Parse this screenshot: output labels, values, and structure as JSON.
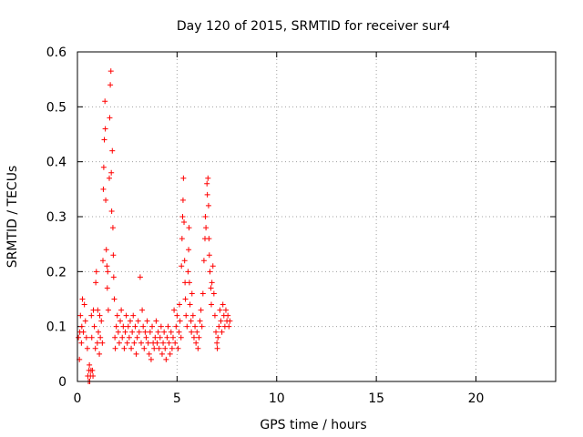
{
  "chart_data": {
    "type": "scatter",
    "title": "Day 120 of 2015, SRMTID for receiver sur4",
    "xlabel": "GPS time / hours",
    "ylabel": "SRMTID / TECUs",
    "xlim": [
      0,
      24
    ],
    "ylim": [
      0,
      0.6
    ],
    "xticks": [
      0,
      5,
      10,
      15,
      20
    ],
    "yticks": [
      0,
      0.1,
      0.2,
      0.3,
      0.4,
      0.5,
      0.6
    ],
    "grid": true,
    "marker": "+",
    "color": "#ff0000",
    "series": [
      {
        "name": "SRMTID",
        "points": [
          [
            0.05,
            0.08
          ],
          [
            0.1,
            0.04
          ],
          [
            0.12,
            0.09
          ],
          [
            0.15,
            0.12
          ],
          [
            0.2,
            0.07
          ],
          [
            0.22,
            0.1
          ],
          [
            0.25,
            0.15
          ],
          [
            0.3,
            0.09
          ],
          [
            0.35,
            0.14
          ],
          [
            0.4,
            0.11
          ],
          [
            0.45,
            0.08
          ],
          [
            0.5,
            0.06
          ],
          [
            0.52,
            0.01
          ],
          [
            0.55,
            0.0
          ],
          [
            0.58,
            0.02
          ],
          [
            0.6,
            0.03
          ],
          [
            0.62,
            0.0
          ],
          [
            0.65,
            0.01
          ],
          [
            0.68,
            0.02
          ],
          [
            0.7,
            0.12
          ],
          [
            0.72,
            0.08
          ],
          [
            0.75,
            0.02
          ],
          [
            0.78,
            0.01
          ],
          [
            0.8,
            0.13
          ],
          [
            0.85,
            0.1
          ],
          [
            0.9,
            0.06
          ],
          [
            0.92,
            0.18
          ],
          [
            0.95,
            0.2
          ],
          [
            1.0,
            0.07
          ],
          [
            1.02,
            0.13
          ],
          [
            1.05,
            0.09
          ],
          [
            1.1,
            0.05
          ],
          [
            1.12,
            0.12
          ],
          [
            1.15,
            0.08
          ],
          [
            1.2,
            0.11
          ],
          [
            1.25,
            0.07
          ],
          [
            1.28,
            0.22
          ],
          [
            1.3,
            0.35
          ],
          [
            1.32,
            0.39
          ],
          [
            1.35,
            0.44
          ],
          [
            1.38,
            0.51
          ],
          [
            1.4,
            0.46
          ],
          [
            1.42,
            0.33
          ],
          [
            1.45,
            0.24
          ],
          [
            1.48,
            0.21
          ],
          [
            1.5,
            0.17
          ],
          [
            1.52,
            0.2
          ],
          [
            1.55,
            0.13
          ],
          [
            1.6,
            0.37
          ],
          [
            1.62,
            0.48
          ],
          [
            1.65,
            0.54
          ],
          [
            1.68,
            0.565
          ],
          [
            1.7,
            0.38
          ],
          [
            1.72,
            0.31
          ],
          [
            1.75,
            0.42
          ],
          [
            1.78,
            0.28
          ],
          [
            1.8,
            0.23
          ],
          [
            1.82,
            0.19
          ],
          [
            1.85,
            0.15
          ],
          [
            1.88,
            0.08
          ],
          [
            1.9,
            0.06
          ],
          [
            1.95,
            0.1
          ],
          [
            2.0,
            0.12
          ],
          [
            2.05,
            0.09
          ],
          [
            2.1,
            0.07
          ],
          [
            2.15,
            0.11
          ],
          [
            2.2,
            0.13
          ],
          [
            2.25,
            0.08
          ],
          [
            2.3,
            0.1
          ],
          [
            2.35,
            0.06
          ],
          [
            2.4,
            0.09
          ],
          [
            2.45,
            0.12
          ],
          [
            2.5,
            0.07
          ],
          [
            2.55,
            0.1
          ],
          [
            2.6,
            0.08
          ],
          [
            2.65,
            0.11
          ],
          [
            2.7,
            0.06
          ],
          [
            2.75,
            0.09
          ],
          [
            2.8,
            0.12
          ],
          [
            2.85,
            0.07
          ],
          [
            2.9,
            0.1
          ],
          [
            2.95,
            0.05
          ],
          [
            3.0,
            0.08
          ],
          [
            3.05,
            0.11
          ],
          [
            3.1,
            0.09
          ],
          [
            3.15,
            0.19
          ],
          [
            3.2,
            0.07
          ],
          [
            3.25,
            0.13
          ],
          [
            3.3,
            0.1
          ],
          [
            3.35,
            0.06
          ],
          [
            3.4,
            0.09
          ],
          [
            3.45,
            0.08
          ],
          [
            3.5,
            0.11
          ],
          [
            3.55,
            0.07
          ],
          [
            3.6,
            0.05
          ],
          [
            3.65,
            0.09
          ],
          [
            3.7,
            0.04
          ],
          [
            3.75,
            0.1
          ],
          [
            3.8,
            0.07
          ],
          [
            3.85,
            0.06
          ],
          [
            3.9,
            0.08
          ],
          [
            3.95,
            0.11
          ],
          [
            4.0,
            0.07
          ],
          [
            4.05,
            0.09
          ],
          [
            4.1,
            0.06
          ],
          [
            4.15,
            0.08
          ],
          [
            4.2,
            0.1
          ],
          [
            4.25,
            0.05
          ],
          [
            4.3,
            0.07
          ],
          [
            4.35,
            0.09
          ],
          [
            4.4,
            0.06
          ],
          [
            4.45,
            0.04
          ],
          [
            4.5,
            0.08
          ],
          [
            4.55,
            0.1
          ],
          [
            4.6,
            0.07
          ],
          [
            4.65,
            0.05
          ],
          [
            4.7,
            0.09
          ],
          [
            4.75,
            0.06
          ],
          [
            4.8,
            0.08
          ],
          [
            4.85,
            0.13
          ],
          [
            4.9,
            0.07
          ],
          [
            4.95,
            0.1
          ],
          [
            5.0,
            0.12
          ],
          [
            5.05,
            0.06
          ],
          [
            5.1,
            0.09
          ],
          [
            5.12,
            0.14
          ],
          [
            5.15,
            0.11
          ],
          [
            5.2,
            0.08
          ],
          [
            5.22,
            0.21
          ],
          [
            5.25,
            0.26
          ],
          [
            5.28,
            0.3
          ],
          [
            5.3,
            0.33
          ],
          [
            5.32,
            0.37
          ],
          [
            5.35,
            0.29
          ],
          [
            5.38,
            0.22
          ],
          [
            5.4,
            0.18
          ],
          [
            5.42,
            0.15
          ],
          [
            5.45,
            0.12
          ],
          [
            5.5,
            0.1
          ],
          [
            5.55,
            0.2
          ],
          [
            5.58,
            0.24
          ],
          [
            5.6,
            0.28
          ],
          [
            5.62,
            0.18
          ],
          [
            5.65,
            0.14
          ],
          [
            5.7,
            0.11
          ],
          [
            5.72,
            0.09
          ],
          [
            5.75,
            0.16
          ],
          [
            5.8,
            0.12
          ],
          [
            5.85,
            0.08
          ],
          [
            5.9,
            0.1
          ],
          [
            5.95,
            0.07
          ],
          [
            6.0,
            0.09
          ],
          [
            6.05,
            0.06
          ],
          [
            6.1,
            0.08
          ],
          [
            6.15,
            0.11
          ],
          [
            6.2,
            0.13
          ],
          [
            6.25,
            0.1
          ],
          [
            6.3,
            0.16
          ],
          [
            6.35,
            0.22
          ],
          [
            6.4,
            0.26
          ],
          [
            6.42,
            0.3
          ],
          [
            6.45,
            0.28
          ],
          [
            6.5,
            0.36
          ],
          [
            6.52,
            0.34
          ],
          [
            6.55,
            0.37
          ],
          [
            6.58,
            0.32
          ],
          [
            6.6,
            0.26
          ],
          [
            6.62,
            0.23
          ],
          [
            6.65,
            0.2
          ],
          [
            6.7,
            0.17
          ],
          [
            6.72,
            0.14
          ],
          [
            6.75,
            0.18
          ],
          [
            6.8,
            0.21
          ],
          [
            6.85,
            0.16
          ],
          [
            6.9,
            0.12
          ],
          [
            6.95,
            0.09
          ],
          [
            7.0,
            0.07
          ],
          [
            7.02,
            0.06
          ],
          [
            7.05,
            0.08
          ],
          [
            7.1,
            0.1
          ],
          [
            7.15,
            0.13
          ],
          [
            7.2,
            0.11
          ],
          [
            7.25,
            0.09
          ],
          [
            7.3,
            0.14
          ],
          [
            7.35,
            0.12
          ],
          [
            7.4,
            0.1
          ],
          [
            7.45,
            0.13
          ],
          [
            7.5,
            0.11
          ],
          [
            7.55,
            0.12
          ],
          [
            7.6,
            0.1
          ],
          [
            7.65,
            0.11
          ]
        ]
      }
    ]
  }
}
